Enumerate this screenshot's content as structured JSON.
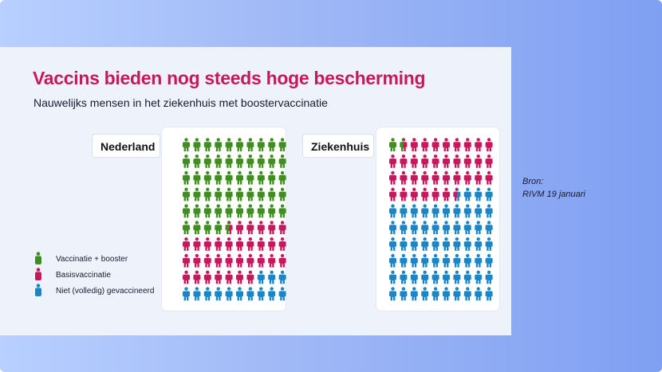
{
  "header": {
    "title": "Vaccins bieden nog steeds hoge bescherming",
    "subtitle": "Nauwelijks mensen in het ziekenhuis met boostervaccinatie"
  },
  "source": {
    "label": "Bron:",
    "text": "RIVM 19 januari"
  },
  "colors": {
    "booster": "#3f8f1f",
    "basis": "#c8175d",
    "niet": "#1a86c8"
  },
  "legend": [
    {
      "key": "booster",
      "label": "Vaccinatie + booster",
      "icon": "person-icon"
    },
    {
      "key": "basis",
      "label": "Basisvaccinatie",
      "icon": "person-icon"
    },
    {
      "key": "niet",
      "label": "Niet (volledig) gevaccineerd",
      "icon": "person-icon"
    }
  ],
  "chart_data": [
    {
      "type": "pictogram",
      "name": "Nederland",
      "grid": {
        "rows": 10,
        "cols": 10
      },
      "series": [
        {
          "key": "booster",
          "label": "Vaccinatie + booster",
          "value": 54.5
        },
        {
          "key": "basis",
          "label": "Basisvaccinatie",
          "value": 32.5
        },
        {
          "key": "niet",
          "label": "Niet (volledig) gevaccineerd",
          "value": 13
        }
      ]
    },
    {
      "type": "pictogram",
      "name": "Ziekenhuis",
      "grid": {
        "rows": 10,
        "cols": 10
      },
      "series": [
        {
          "key": "booster",
          "label": "Vaccinatie + booster",
          "value": 1.5
        },
        {
          "key": "basis",
          "label": "Basisvaccinatie",
          "value": 35
        },
        {
          "key": "niet",
          "label": "Niet (volledig) gevaccineerd",
          "value": 63.5
        }
      ]
    }
  ]
}
